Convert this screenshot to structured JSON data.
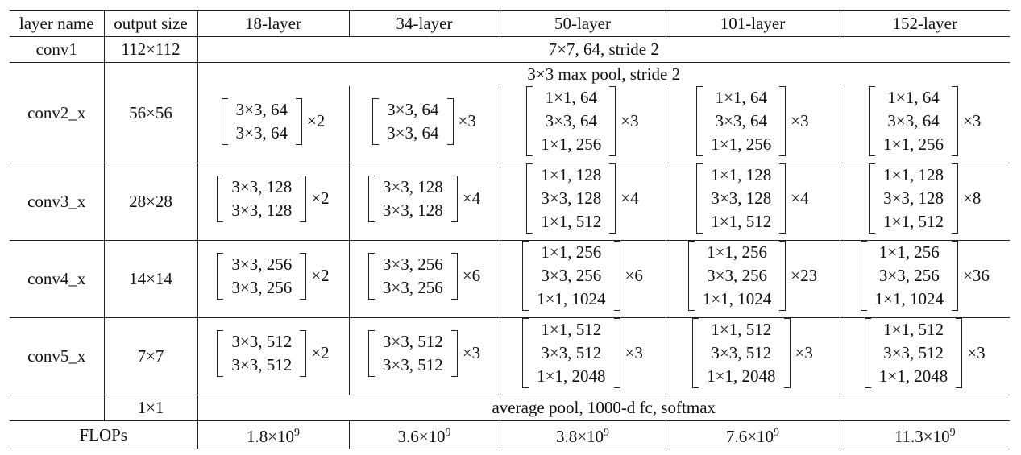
{
  "headers": [
    "layer name",
    "output size",
    "18-layer",
    "34-layer",
    "50-layer",
    "101-layer",
    "152-layer"
  ],
  "conv1": {
    "name": "conv1",
    "size": "112×112",
    "desc": "7×7, 64, stride 2"
  },
  "pool": {
    "desc": "3×3 max pool, stride 2"
  },
  "blocks": [
    {
      "name": "conv2_x",
      "size": "56×56",
      "cells": [
        {
          "lines": [
            "3×3, 64",
            "3×3, 64"
          ],
          "rep": "×2"
        },
        {
          "lines": [
            "3×3, 64",
            "3×3, 64"
          ],
          "rep": "×3"
        },
        {
          "lines": [
            "1×1, 64",
            "3×3, 64",
            "1×1, 256"
          ],
          "rep": "×3"
        },
        {
          "lines": [
            "1×1, 64",
            "3×3, 64",
            "1×1, 256"
          ],
          "rep": "×3"
        },
        {
          "lines": [
            "1×1, 64",
            "3×3, 64",
            "1×1, 256"
          ],
          "rep": "×3"
        }
      ]
    },
    {
      "name": "conv3_x",
      "size": "28×28",
      "cells": [
        {
          "lines": [
            "3×3, 128",
            "3×3, 128"
          ],
          "rep": "×2"
        },
        {
          "lines": [
            "3×3, 128",
            "3×3, 128"
          ],
          "rep": "×4"
        },
        {
          "lines": [
            "1×1, 128",
            "3×3, 128",
            "1×1, 512"
          ],
          "rep": "×4"
        },
        {
          "lines": [
            "1×1, 128",
            "3×3, 128",
            "1×1, 512"
          ],
          "rep": "×4"
        },
        {
          "lines": [
            "1×1, 128",
            "3×3, 128",
            "1×1, 512"
          ],
          "rep": "×8"
        }
      ]
    },
    {
      "name": "conv4_x",
      "size": "14×14",
      "cells": [
        {
          "lines": [
            "3×3, 256",
            "3×3, 256"
          ],
          "rep": "×2"
        },
        {
          "lines": [
            "3×3, 256",
            "3×3, 256"
          ],
          "rep": "×6"
        },
        {
          "lines": [
            "1×1, 256",
            "3×3, 256",
            "1×1, 1024"
          ],
          "rep": "×6"
        },
        {
          "lines": [
            "1×1, 256",
            "3×3, 256",
            "1×1, 1024"
          ],
          "rep": "×23"
        },
        {
          "lines": [
            "1×1, 256",
            "3×3, 256",
            "1×1, 1024"
          ],
          "rep": "×36"
        }
      ]
    },
    {
      "name": "conv5_x",
      "size": "7×7",
      "cells": [
        {
          "lines": [
            "3×3, 512",
            "3×3, 512"
          ],
          "rep": "×2"
        },
        {
          "lines": [
            "3×3, 512",
            "3×3, 512"
          ],
          "rep": "×3"
        },
        {
          "lines": [
            "1×1, 512",
            "3×3, 512",
            "1×1, 2048"
          ],
          "rep": "×3"
        },
        {
          "lines": [
            "1×1, 512",
            "3×3, 512",
            "1×1, 2048"
          ],
          "rep": "×3"
        },
        {
          "lines": [
            "1×1, 512",
            "3×3, 512",
            "1×1, 2048"
          ],
          "rep": "×3"
        }
      ]
    }
  ],
  "final": {
    "size": "1×1",
    "desc": "average pool, 1000-d fc, softmax"
  },
  "flops": {
    "label": "FLOPs",
    "values": [
      {
        "base": "1.8×10",
        "exp": "9"
      },
      {
        "base": "3.6×10",
        "exp": "9"
      },
      {
        "base": "3.8×10",
        "exp": "9"
      },
      {
        "base": "7.6×10",
        "exp": "9"
      },
      {
        "base": "11.3×10",
        "exp": "9"
      }
    ]
  }
}
